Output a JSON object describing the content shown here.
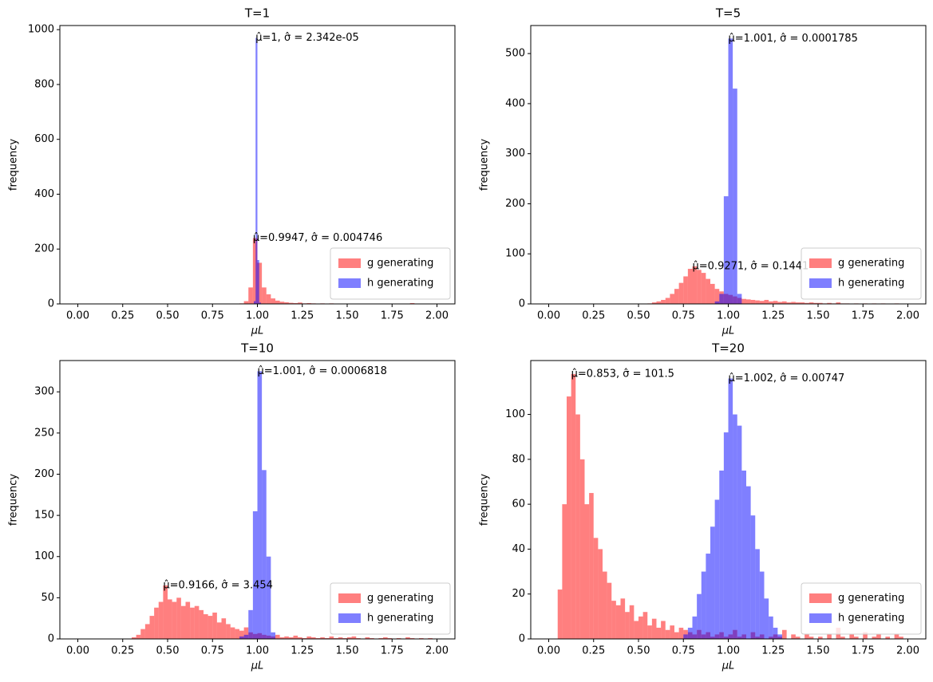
{
  "chart_data": [
    {
      "type": "histogram",
      "title": "T=1",
      "x_label": "μL",
      "y_label": "frequency",
      "xlim": [
        -0.1,
        2.1
      ],
      "ylim": [
        0,
        1015
      ],
      "xticks": [
        {
          "value": 0,
          "label": "0.00"
        },
        {
          "value": 0.25,
          "label": "0.25"
        },
        {
          "value": 0.5,
          "label": "0.50"
        },
        {
          "value": 0.75,
          "label": "0.75"
        },
        {
          "value": 1,
          "label": "1.00"
        },
        {
          "value": 1.25,
          "label": "1.25"
        },
        {
          "value": 1.5,
          "label": "1.50"
        },
        {
          "value": 1.75,
          "label": "1.75"
        },
        {
          "value": 2,
          "label": "2.00"
        }
      ],
      "yticks": [
        0,
        200,
        400,
        600,
        800,
        1000
      ],
      "grid": false,
      "legend": "lower right",
      "alpha": 0.5,
      "series": [
        {
          "name": "g generating",
          "color": "#ff0000",
          "annotation": "μ̂=0.9947, σ̂ = 0.004746",
          "bins": [
            0.9,
            0.925,
            0.95,
            0.975,
            1.0,
            1.025,
            1.05,
            1.075,
            1.1,
            1.125,
            1.15,
            1.175,
            1.2,
            1.225,
            1.25,
            1.275,
            1.3,
            1.325,
            1.35,
            1.375,
            1.4,
            1.425,
            1.45,
            1.475,
            1.5,
            1.525,
            1.55,
            1.575,
            1.6,
            1.625,
            1.65,
            1.675,
            1.7,
            1.725,
            1.75,
            1.775,
            1.8,
            1.825,
            1.85,
            1.875,
            1.9
          ],
          "values": [
            2,
            10,
            60,
            240,
            150,
            60,
            35,
            20,
            12,
            8,
            6,
            4,
            3,
            5,
            2,
            3,
            2,
            1,
            2,
            1,
            2,
            0,
            1,
            0,
            1,
            0,
            1,
            0,
            0,
            1,
            0,
            0,
            0,
            0,
            0,
            0,
            0,
            1,
            3,
            0
          ]
        },
        {
          "name": "h generating",
          "color": "#0000ff",
          "annotation": "μ̂=1, σ̂ = 2.342e-05",
          "bins": [
            0.98,
            0.99,
            1.0,
            1.01,
            1.02
          ],
          "values": [
            10,
            970,
            160,
            5
          ]
        }
      ]
    },
    {
      "type": "histogram",
      "title": "T=5",
      "x_label": "μL",
      "y_label": "frequency",
      "xlim": [
        -0.1,
        2.1
      ],
      "ylim": [
        0,
        556
      ],
      "xticks": [
        {
          "value": 0,
          "label": "0.00"
        },
        {
          "value": 0.25,
          "label": "0.25"
        },
        {
          "value": 0.5,
          "label": "0.50"
        },
        {
          "value": 0.75,
          "label": "0.75"
        },
        {
          "value": 1,
          "label": "1.00"
        },
        {
          "value": 1.25,
          "label": "1.25"
        },
        {
          "value": 1.5,
          "label": "1.50"
        },
        {
          "value": 1.75,
          "label": "1.75"
        },
        {
          "value": 2,
          "label": "2.00"
        }
      ],
      "yticks": [
        0,
        100,
        200,
        300,
        400,
        500
      ],
      "grid": false,
      "legend": "lower right",
      "alpha": 0.5,
      "series": [
        {
          "name": "g generating",
          "color": "#ff0000",
          "annotation": "μ̂=0.9271, σ̂ = 0.1441",
          "bins": [
            0.55,
            0.575,
            0.6,
            0.625,
            0.65,
            0.675,
            0.7,
            0.725,
            0.75,
            0.775,
            0.8,
            0.825,
            0.85,
            0.875,
            0.9,
            0.925,
            0.95,
            0.975,
            1.0,
            1.025,
            1.05,
            1.075,
            1.1,
            1.125,
            1.15,
            1.175,
            1.2,
            1.225,
            1.25,
            1.275,
            1.3,
            1.325,
            1.35,
            1.375,
            1.4,
            1.425,
            1.45,
            1.475,
            1.5,
            1.525,
            1.55,
            1.575,
            1.6,
            1.625,
            1.65,
            1.675,
            1.7,
            1.725,
            1.75,
            1.775,
            1.8,
            1.825,
            1.85,
            1.875,
            1.9,
            1.925,
            1.95
          ],
          "values": [
            1,
            3,
            5,
            8,
            12,
            20,
            30,
            42,
            55,
            70,
            75,
            68,
            62,
            50,
            40,
            30,
            25,
            20,
            18,
            15,
            12,
            10,
            9,
            8,
            7,
            6,
            8,
            5,
            6,
            4,
            5,
            3,
            4,
            3,
            3,
            2,
            3,
            2,
            2,
            1,
            2,
            1,
            3,
            1,
            1,
            0,
            1,
            0,
            1,
            0,
            1,
            0,
            1,
            0,
            0,
            1
          ]
        },
        {
          "name": "h generating",
          "color": "#0000ff",
          "annotation": "μ̂=1.001, σ̂ = 0.0001785",
          "bins": [
            0.925,
            0.95,
            0.975,
            1.0,
            1.025,
            1.05,
            1.075
          ],
          "values": [
            5,
            20,
            215,
            530,
            430,
            20
          ]
        }
      ]
    },
    {
      "type": "histogram",
      "title": "T=10",
      "x_label": "μL",
      "y_label": "frequency",
      "xlim": [
        -0.1,
        2.1
      ],
      "ylim": [
        0,
        338
      ],
      "xticks": [
        {
          "value": 0,
          "label": "0.00"
        },
        {
          "value": 0.25,
          "label": "0.25"
        },
        {
          "value": 0.5,
          "label": "0.50"
        },
        {
          "value": 0.75,
          "label": "0.75"
        },
        {
          "value": 1,
          "label": "1.00"
        },
        {
          "value": 1.25,
          "label": "1.25"
        },
        {
          "value": 1.5,
          "label": "1.50"
        },
        {
          "value": 1.75,
          "label": "1.75"
        },
        {
          "value": 2,
          "label": "2.00"
        }
      ],
      "yticks": [
        0,
        50,
        100,
        150,
        200,
        250,
        300
      ],
      "grid": false,
      "legend": "lower right",
      "alpha": 0.5,
      "series": [
        {
          "name": "g generating",
          "color": "#ff0000",
          "annotation": "μ̂=0.9166, σ̂ = 3.454",
          "bins": [
            0.3,
            0.325,
            0.35,
            0.375,
            0.4,
            0.425,
            0.45,
            0.475,
            0.5,
            0.525,
            0.55,
            0.575,
            0.6,
            0.625,
            0.65,
            0.675,
            0.7,
            0.725,
            0.75,
            0.775,
            0.8,
            0.825,
            0.85,
            0.875,
            0.9,
            0.925,
            0.95,
            0.975,
            1.0,
            1.025,
            1.05,
            1.075,
            1.1,
            1.125,
            1.15,
            1.175,
            1.2,
            1.225,
            1.25,
            1.275,
            1.3,
            1.325,
            1.35,
            1.375,
            1.4,
            1.425,
            1.45,
            1.475,
            1.5,
            1.525,
            1.55,
            1.575,
            1.6,
            1.625,
            1.65,
            1.675,
            1.7,
            1.725,
            1.75,
            1.775,
            1.8,
            1.825,
            1.85,
            1.875,
            1.9,
            1.925,
            1.95,
            1.975,
            2.0
          ],
          "values": [
            2,
            5,
            12,
            18,
            28,
            38,
            45,
            65,
            48,
            45,
            50,
            40,
            45,
            38,
            40,
            35,
            30,
            28,
            32,
            20,
            25,
            18,
            14,
            12,
            10,
            14,
            8,
            6,
            7,
            5,
            4,
            3,
            5,
            2,
            3,
            2,
            4,
            2,
            1,
            3,
            2,
            1,
            2,
            1,
            3,
            1,
            2,
            1,
            2,
            3,
            1,
            0,
            2,
            1,
            0,
            1,
            2,
            1,
            0,
            1,
            0,
            2,
            1,
            0,
            1,
            0,
            1,
            0
          ]
        },
        {
          "name": "h generating",
          "color": "#0000ff",
          "annotation": "μ̂=1.001, σ̂ = 0.0006818",
          "bins": [
            0.9,
            0.925,
            0.95,
            0.975,
            1.0,
            1.025,
            1.05,
            1.075,
            1.1
          ],
          "values": [
            3,
            5,
            35,
            155,
            325,
            205,
            100,
            8
          ]
        }
      ]
    },
    {
      "type": "histogram",
      "title": "T=20",
      "x_label": "μL",
      "y_label": "frequency",
      "xlim": [
        -0.1,
        2.1
      ],
      "ylim": [
        0,
        124
      ],
      "xticks": [
        {
          "value": 0,
          "label": "0.00"
        },
        {
          "value": 0.25,
          "label": "0.25"
        },
        {
          "value": 0.5,
          "label": "0.50"
        },
        {
          "value": 0.75,
          "label": "0.75"
        },
        {
          "value": 1,
          "label": "1.00"
        },
        {
          "value": 1.25,
          "label": "1.25"
        },
        {
          "value": 1.5,
          "label": "1.50"
        },
        {
          "value": 1.75,
          "label": "1.75"
        },
        {
          "value": 2,
          "label": "2.00"
        }
      ],
      "yticks": [
        0,
        20,
        40,
        60,
        80,
        100
      ],
      "grid": false,
      "legend": "lower right",
      "alpha": 0.5,
      "series": [
        {
          "name": "g generating",
          "color": "#ff0000",
          "annotation": "μ̂=0.853, σ̂ = 101.5",
          "bins": [
            0.05,
            0.075,
            0.1,
            0.125,
            0.15,
            0.175,
            0.2,
            0.225,
            0.25,
            0.275,
            0.3,
            0.325,
            0.35,
            0.375,
            0.4,
            0.425,
            0.45,
            0.475,
            0.5,
            0.525,
            0.55,
            0.575,
            0.6,
            0.625,
            0.65,
            0.675,
            0.7,
            0.725,
            0.75,
            0.775,
            0.8,
            0.825,
            0.85,
            0.875,
            0.9,
            0.925,
            0.95,
            0.975,
            1.0,
            1.025,
            1.05,
            1.075,
            1.1,
            1.125,
            1.15,
            1.175,
            1.2,
            1.225,
            1.25,
            1.275,
            1.3,
            1.325,
            1.35,
            1.375,
            1.4,
            1.425,
            1.45,
            1.475,
            1.5,
            1.525,
            1.55,
            1.575,
            1.6,
            1.625,
            1.65,
            1.675,
            1.7,
            1.725,
            1.75,
            1.775,
            1.8,
            1.825,
            1.85,
            1.875,
            1.9,
            1.925,
            1.95,
            1.975,
            2.0
          ],
          "values": [
            22,
            60,
            108,
            118,
            100,
            80,
            60,
            65,
            45,
            40,
            30,
            25,
            17,
            15,
            18,
            12,
            15,
            8,
            10,
            12,
            6,
            9,
            5,
            8,
            4,
            6,
            3,
            5,
            4,
            3,
            2,
            4,
            2,
            3,
            1,
            2,
            3,
            1,
            2,
            4,
            1,
            2,
            0,
            3,
            1,
            2,
            0,
            1,
            2,
            1,
            4,
            0,
            2,
            1,
            0,
            2,
            1,
            0,
            1,
            0,
            2,
            0,
            5,
            1,
            0,
            2,
            1,
            0,
            3,
            0,
            1,
            2,
            0,
            1,
            0,
            2,
            1,
            0
          ]
        },
        {
          "name": "h generating",
          "color": "#0000ff",
          "annotation": "μ̂=1.002, σ̂ = 0.00747",
          "bins": [
            0.75,
            0.775,
            0.8,
            0.825,
            0.85,
            0.875,
            0.9,
            0.925,
            0.95,
            0.975,
            1.0,
            1.025,
            1.05,
            1.075,
            1.1,
            1.125,
            1.15,
            1.175,
            1.2,
            1.225,
            1.25,
            1.275,
            1.3
          ],
          "values": [
            2,
            5,
            10,
            20,
            30,
            38,
            50,
            62,
            75,
            92,
            116,
            100,
            95,
            75,
            68,
            55,
            40,
            30,
            18,
            10,
            5,
            2
          ]
        }
      ]
    }
  ]
}
